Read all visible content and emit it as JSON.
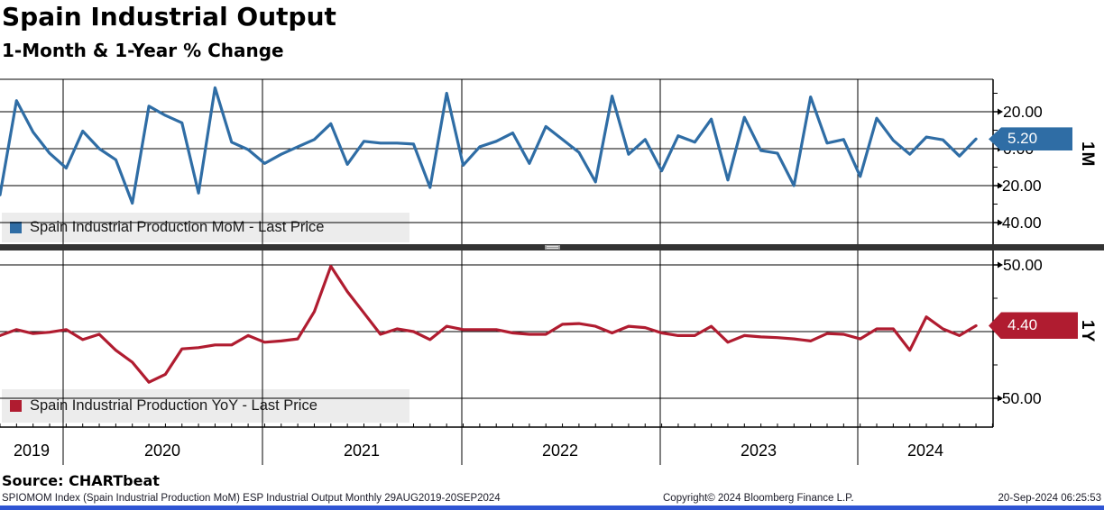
{
  "header": {
    "title": "Spain Industrial Output",
    "subtitle": "1-Month & 1-Year % Change"
  },
  "chart_data": [
    {
      "type": "line",
      "panel": "top",
      "title": "Spain Industrial Production MoM - Last Price",
      "axis_label": "1M",
      "color": "#2f6da5",
      "last_price_label": "5.20",
      "y_major_ticks": [
        20,
        0,
        -20,
        -40
      ],
      "y_minor_ticks": [
        30,
        10,
        -10,
        -30
      ],
      "ylim": [
        -44,
        37.5
      ],
      "x_range": "monthly, Aug 2019 - Aug 2024",
      "values": [
        -25,
        26,
        9,
        -2.5,
        -10.5,
        9.5,
        0,
        -6,
        -29.5,
        23,
        18,
        14,
        -24,
        33,
        3.5,
        -0.5,
        -8,
        -3,
        1,
        5,
        13.5,
        -8.5,
        4,
        3,
        3,
        2.5,
        -21,
        30,
        -9,
        1,
        4,
        8.5,
        -8,
        12,
        5,
        -2,
        -18,
        28.5,
        -3,
        5,
        -12,
        7,
        3.5,
        16,
        -17,
        17,
        -1,
        -2.5,
        -20,
        28,
        3,
        5,
        -15,
        16.5,
        4.5,
        -3,
        6.3,
        4.8,
        -4,
        5.2
      ]
    },
    {
      "type": "line",
      "panel": "bottom",
      "title": "Spain Industrial Production YoY - Last Price",
      "axis_label": "1Y",
      "color": "#b01c30",
      "last_price_label": "4.40",
      "y_major_ticks": [
        50,
        0,
        -50
      ],
      "y_minor_ticks": [
        25,
        -25
      ],
      "ylim": [
        -66,
        62
      ],
      "x_range": "monthly, Aug 2019 - Aug 2024",
      "values": [
        -3,
        1.5,
        -1.5,
        -0.5,
        1.5,
        -6,
        -2,
        -14,
        -23,
        -38,
        -32,
        -13,
        -12,
        -10,
        -10,
        -3,
        -8,
        -7,
        -5.5,
        15,
        49,
        30,
        14,
        -2,
        2,
        0,
        -6,
        4,
        1.5,
        1.5,
        1.5,
        -1,
        -2,
        -2,
        5.5,
        6,
        4,
        -1,
        4,
        3,
        -1,
        -3,
        -3,
        4,
        -8,
        -3,
        -4,
        -4.5,
        -5.5,
        -7,
        -1.5,
        -2,
        -5.5,
        2,
        2,
        -14,
        11,
        2,
        -3,
        4.4
      ]
    }
  ],
  "x_axis": {
    "years": [
      "2019",
      "2020",
      "2021",
      "2022",
      "2023",
      "2024"
    ]
  },
  "source_line": "Source: CHARTbeat",
  "footer": {
    "left": "SPIOMOM Index (Spain Industrial Production MoM) ESP Industrial Output  Monthly 29AUG2019-20SEP2024",
    "center": "Copyright© 2024 Bloomberg Finance L.P.",
    "right": "20-Sep-2024 06:25:53"
  }
}
